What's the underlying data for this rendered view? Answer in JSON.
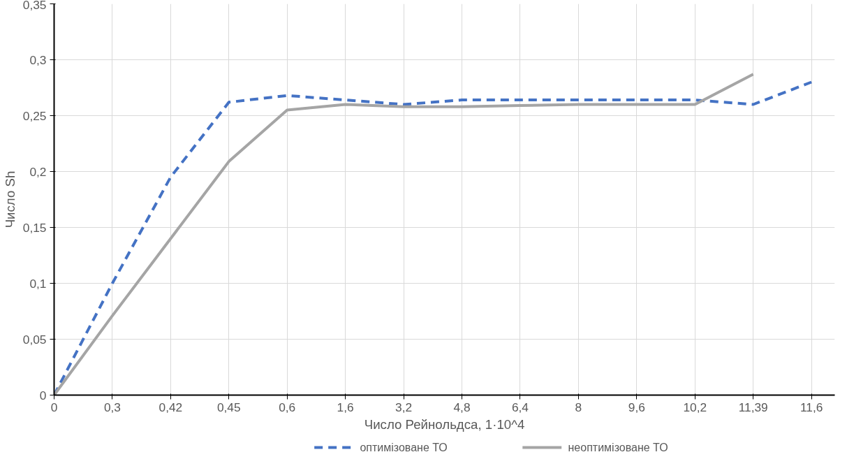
{
  "chart_data": {
    "type": "line",
    "xlabel": "Число Рейнольдса, 1·10^4",
    "ylabel": "Число Sh",
    "categories": [
      "0",
      "0,3",
      "0,42",
      "0,45",
      "0,6",
      "1,6",
      "3,2",
      "4,8",
      "6,4",
      "8",
      "9,6",
      "10,2",
      "11,39",
      "11,6"
    ],
    "ylim": [
      0,
      0.35
    ],
    "yticks": [
      0,
      {
        "value": 0.05,
        "label": "0,05"
      },
      {
        "value": 0.1,
        "label": "0,1"
      },
      {
        "value": 0.15,
        "label": "0,15"
      },
      {
        "value": 0.2,
        "label": "0,2"
      },
      {
        "value": 0.25,
        "label": "0,25"
      },
      {
        "value": 0.3,
        "label": "0,3"
      },
      {
        "value": 0.35,
        "label": "0,35"
      }
    ],
    "grid": true,
    "legend": "bottom",
    "series": [
      {
        "name": "оптимізоване ТО",
        "color": "#4472c4",
        "line_style": "dashed",
        "values": [
          0,
          0.1,
          0.195,
          0.262,
          0.268,
          0.264,
          0.26,
          0.264,
          0.264,
          0.264,
          0.264,
          0.264,
          0.26,
          0.28
        ]
      },
      {
        "name": "неоптимізоване ТО",
        "color": "#a5a5a5",
        "line_style": "solid",
        "values": [
          0,
          0.071,
          0.14,
          0.209,
          0.255,
          0.26,
          0.258,
          0.258,
          0.259,
          0.26,
          0.26,
          0.26,
          0.287,
          null
        ]
      }
    ]
  }
}
